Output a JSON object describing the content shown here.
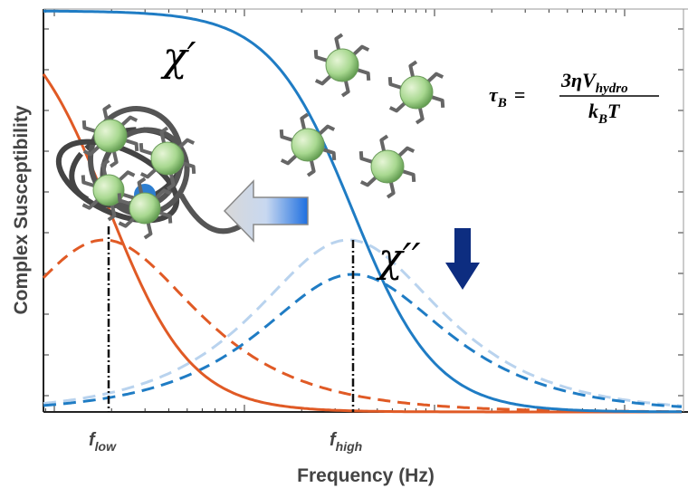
{
  "axes": {
    "y_label": "Complex Susceptibility",
    "x_label": "Frequency (Hz)"
  },
  "curve_labels": {
    "real": "χ′",
    "imaginary": "χ′′"
  },
  "markers": [
    {
      "symbol": "f",
      "subscript": "low"
    },
    {
      "symbol": "f",
      "subscript": "high"
    }
  ],
  "equation": {
    "lhs_symbol": "τ",
    "lhs_subscript": "B",
    "equals": "=",
    "numerator": "3ηV",
    "numerator_subscript": "hydro",
    "denominator": "k",
    "denominator_subscript": "B",
    "denominator_tail": "T"
  }
}
